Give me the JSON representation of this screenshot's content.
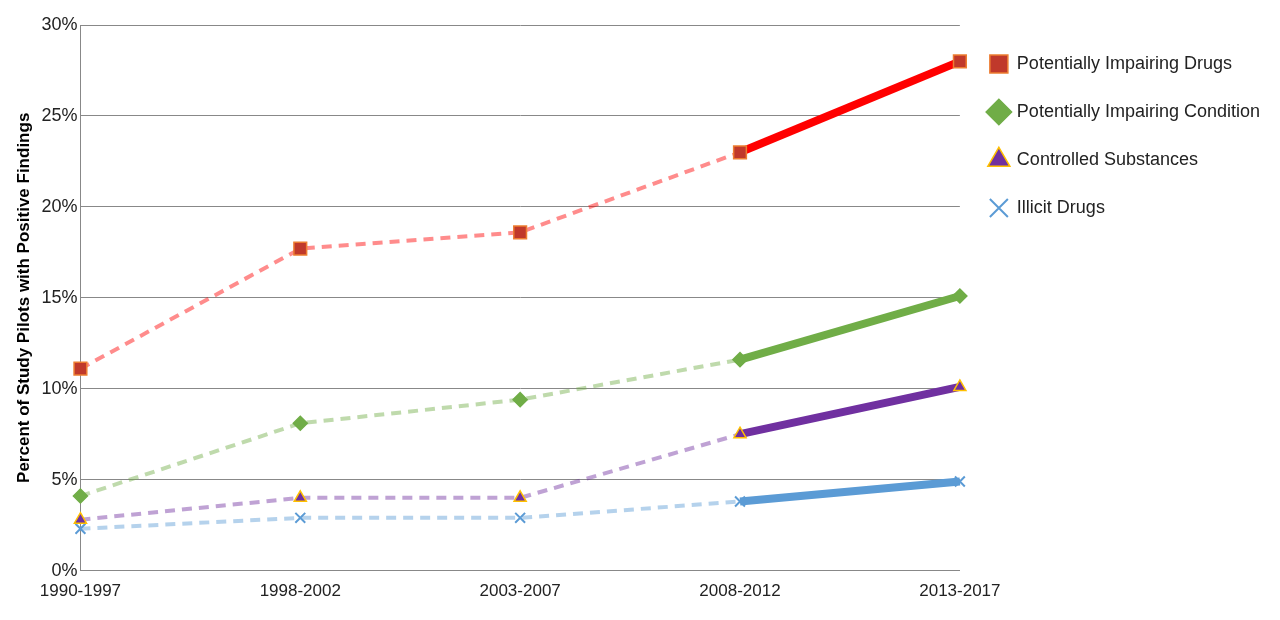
{
  "chart_data": {
    "type": "line",
    "y_label": "Percent of Study Pilots with Positive Findings",
    "categories": [
      "1990-1997",
      "1998-2002",
      "2003-2007",
      "2008-2012",
      "2013-2017"
    ],
    "series": [
      {
        "name": "Potentially Impairing Drugs",
        "color": "#ff0000",
        "marker": "square",
        "line_style": "dashed",
        "values": [
          11.1,
          17.7,
          18.6,
          23.0,
          28.0
        ]
      },
      {
        "name": "Potentially Impairing Condition",
        "color": "#70ad47",
        "marker": "diamond",
        "line_style": "dashed",
        "values": [
          4.1,
          8.1,
          9.4,
          11.6,
          15.1
        ]
      },
      {
        "name": "Controlled Substances",
        "color": "#7030a0",
        "marker": "triangle",
        "line_style": "dashed",
        "values": [
          2.8,
          4.0,
          4.0,
          7.5,
          10.1
        ]
      },
      {
        "name": "Illicit Drugs",
        "color": "#5b9bd5",
        "marker": "x",
        "line_style": "dashed",
        "values": [
          2.3,
          2.9,
          2.9,
          3.8,
          4.9
        ]
      }
    ],
    "ylim": [
      0,
      30
    ],
    "yticks": [
      {
        "value": 0,
        "label": "0%"
      },
      {
        "value": 5,
        "label": "5%"
      },
      {
        "value": 10,
        "label": "10%"
      },
      {
        "value": 15,
        "label": "15%"
      },
      {
        "value": 20,
        "label": "20%"
      },
      {
        "value": 25,
        "label": "25%"
      },
      {
        "value": 30,
        "label": "30%"
      }
    ],
    "grid": true,
    "legend": "right"
  }
}
